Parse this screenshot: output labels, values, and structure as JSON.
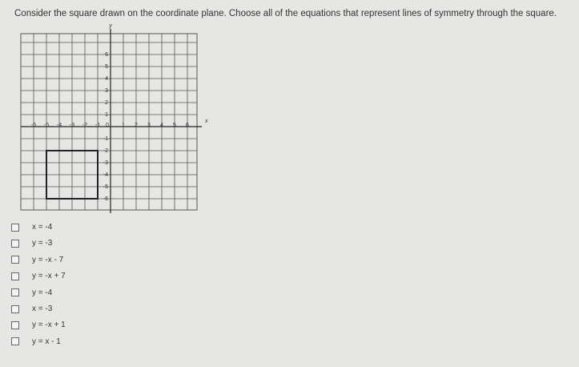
{
  "question": "Consider the square drawn on the coordinate plane. Choose all of the equations that represent lines of symmetry through the square.",
  "graph": {
    "x_axis_label": "x",
    "y_axis_label": "y",
    "x_labels": [
      "-6",
      "-5",
      "-4",
      "-3",
      "-2",
      "-1",
      "0",
      "1",
      "2",
      "3",
      "4",
      "5",
      "6"
    ],
    "y_labels": [
      "6",
      "5",
      "4",
      "3",
      "2",
      "1",
      "-1",
      "-2",
      "-3",
      "-4",
      "-5",
      "-6"
    ]
  },
  "options": [
    "x = -4",
    "y = -3",
    "y = -x - 7",
    "y = -x + 7",
    "y = -4",
    "x = -3",
    "y = -x + 1",
    "y = x - 1"
  ]
}
